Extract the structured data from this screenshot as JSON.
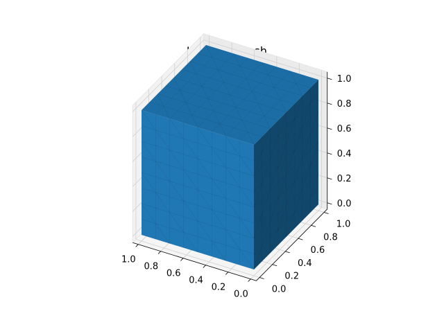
{
  "chart_data": {
    "type": "3d-surface",
    "title": "UnitCubeMesh",
    "object": "unit cube mesh",
    "face_color": "#1f77b4",
    "xlim": [
      0.0,
      1.0
    ],
    "ylim": [
      0.0,
      1.0
    ],
    "zlim": [
      0.0,
      1.0
    ],
    "x_ticks": [
      "0.0",
      "0.2",
      "0.4",
      "0.6",
      "0.8",
      "1.0"
    ],
    "y_ticks": [
      "0.0",
      "0.2",
      "0.4",
      "0.6",
      "0.8",
      "1.0"
    ],
    "z_ticks": [
      "0.0",
      "0.2",
      "0.4",
      "0.6",
      "0.8",
      "1.0"
    ],
    "mesh_divisions": 8,
    "grid": true
  }
}
